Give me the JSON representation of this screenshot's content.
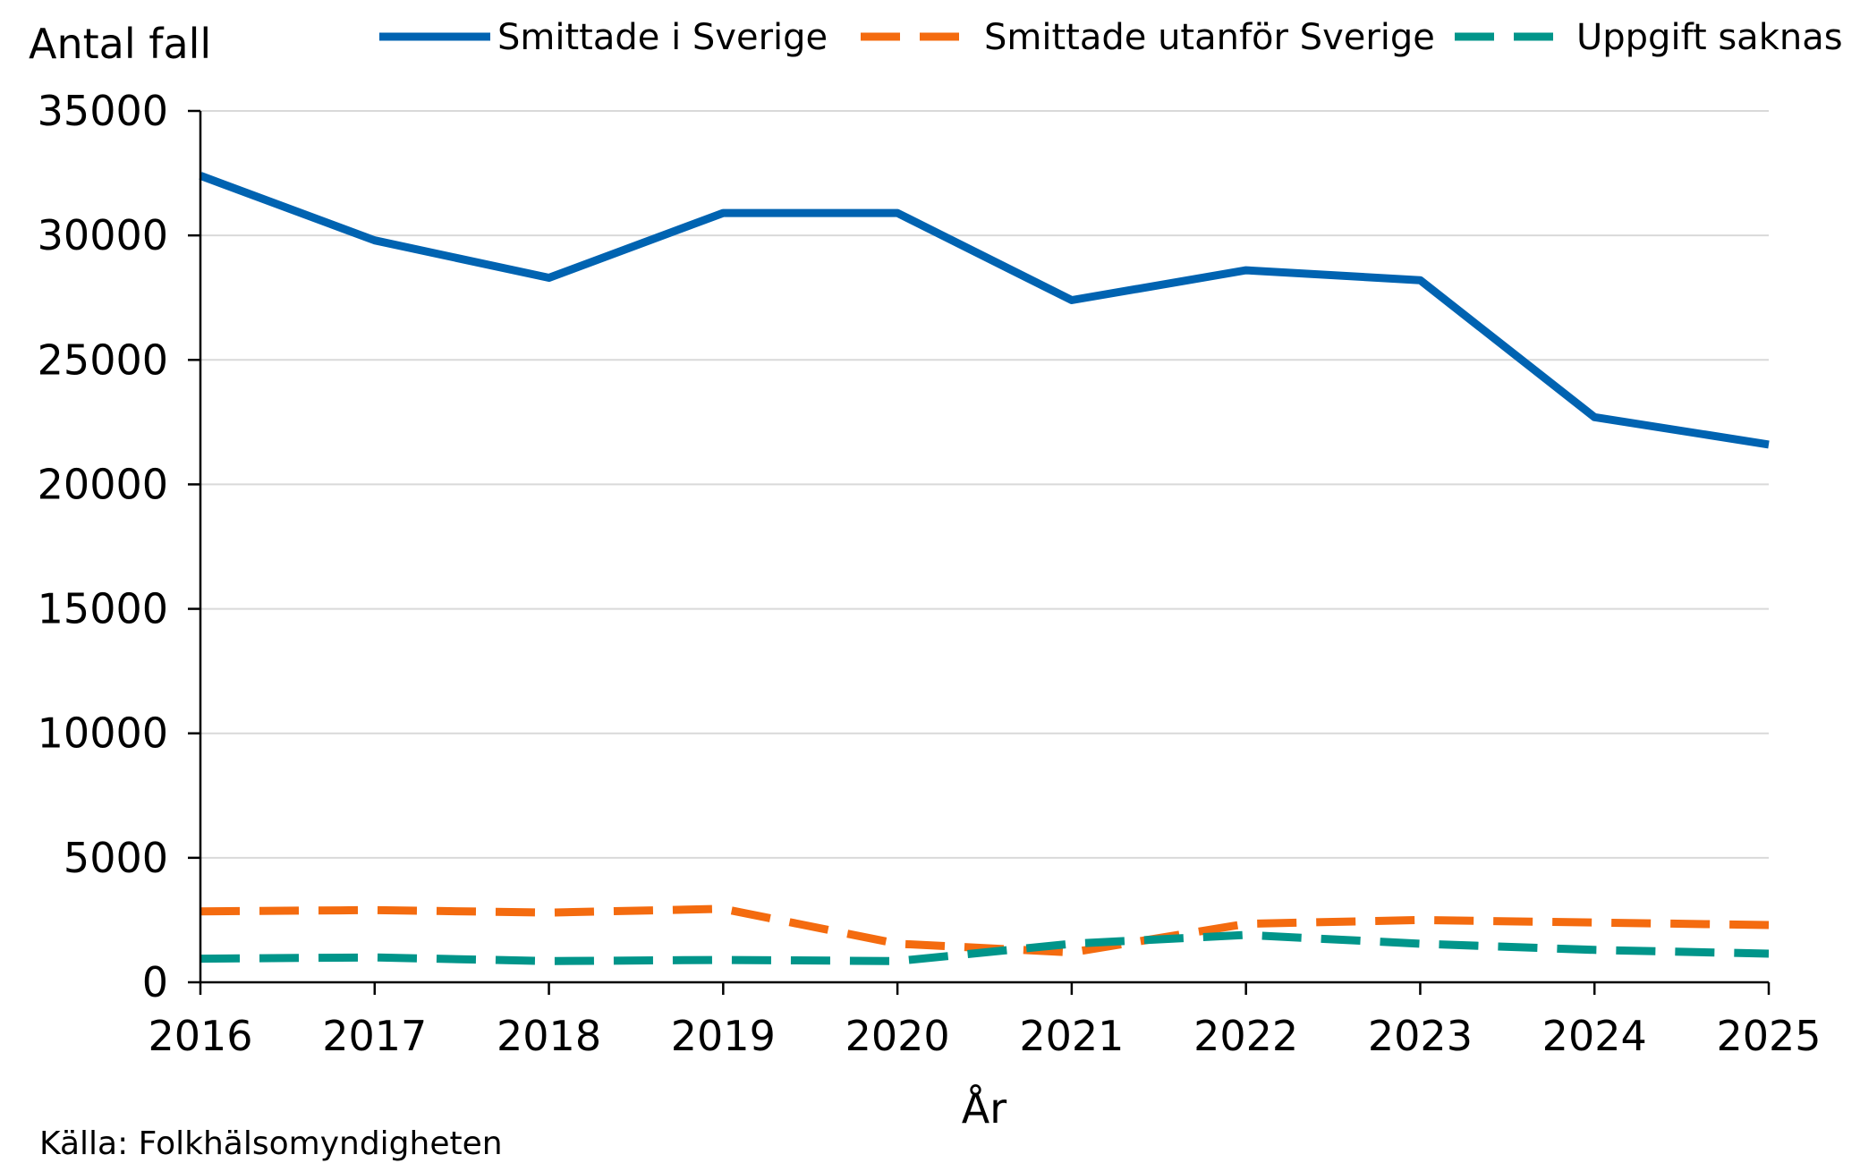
{
  "chart_data": {
    "type": "line",
    "title": "",
    "ylabel": "Antal fall",
    "xlabel": "År",
    "x": [
      2016,
      2017,
      2018,
      2019,
      2020,
      2021,
      2022,
      2023,
      2024,
      2025
    ],
    "xlim": [
      2016,
      2025
    ],
    "ylim": [
      0,
      35000
    ],
    "yticks": [
      0,
      5000,
      10000,
      15000,
      20000,
      25000,
      30000,
      35000
    ],
    "grid": true,
    "legend_position": "top",
    "series": [
      {
        "name": "Smittade i Sverige",
        "color": "#0063b1",
        "style": "solid",
        "values": [
          32400,
          29800,
          28300,
          30900,
          30900,
          27400,
          28600,
          28200,
          22700,
          21600
        ]
      },
      {
        "name": "Smittade utanför Sverige",
        "color": "#f46b0f",
        "style": "dashed",
        "values": [
          2850,
          2900,
          2800,
          2950,
          1550,
          1200,
          2350,
          2500,
          2400,
          2300
        ]
      },
      {
        "name": "Uppgift saknas",
        "color": "#00958a",
        "style": "dashed",
        "values": [
          950,
          1000,
          850,
          900,
          850,
          1550,
          1900,
          1550,
          1300,
          1150
        ]
      }
    ],
    "source": "Källa: Folkhälsomyndigheten"
  }
}
